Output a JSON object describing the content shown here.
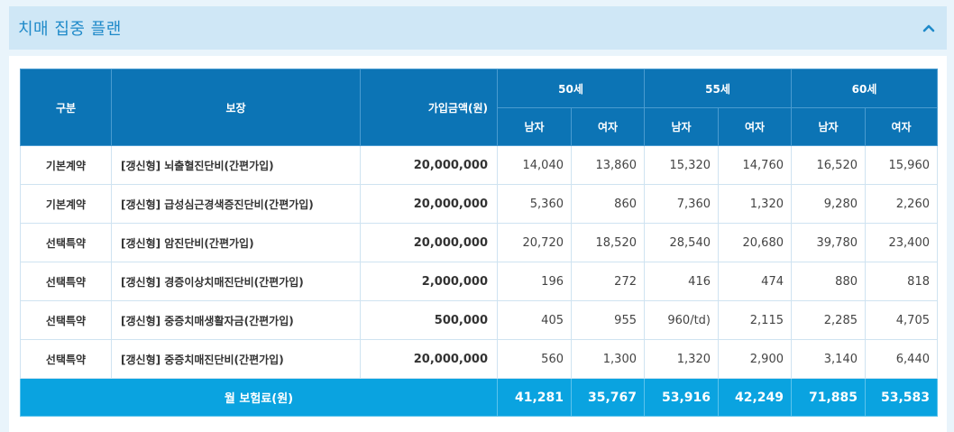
{
  "panel": {
    "title": "치매 집중 플랜",
    "collapse_icon": "chevron-up-icon",
    "accent_color": "#1f8ac9"
  },
  "table": {
    "headers": {
      "category": "구분",
      "coverage": "보장",
      "amount": "가입금액(원)",
      "ages": [
        "50세",
        "55세",
        "60세"
      ],
      "male": "남자",
      "female": "여자"
    },
    "rows": [
      {
        "category": "기본계약",
        "coverage": "[갱신형] 뇌출혈진단비(간편가입)",
        "amount": "20,000,000",
        "values": [
          "14,040",
          "13,860",
          "15,320",
          "14,760",
          "16,520",
          "15,960"
        ]
      },
      {
        "category": "기본계약",
        "coverage": "[갱신형] 급성심근경색증진단비(간편가입)",
        "amount": "20,000,000",
        "values": [
          "5,360",
          "860",
          "7,360",
          "1,320",
          "9,280",
          "2,260"
        ]
      },
      {
        "category": "선택특약",
        "coverage": "[갱신형] 암진단비(간편가입)",
        "amount": "20,000,000",
        "values": [
          "20,720",
          "18,520",
          "28,540",
          "20,680",
          "39,780",
          "23,400"
        ]
      },
      {
        "category": "선택특약",
        "coverage": "[갱신형] 경증이상치매진단비(간편가입)",
        "amount": "2,000,000",
        "values": [
          "196",
          "272",
          "416",
          "474",
          "880",
          "818"
        ]
      },
      {
        "category": "선택특약",
        "coverage": "[갱신형] 중증치매생활자금(간편가입)",
        "amount": "500,000",
        "values": [
          "405",
          "955",
          "960/td)",
          "2,115",
          "2,285",
          "4,705"
        ]
      },
      {
        "category": "선택특약",
        "coverage": "[갱신형] 중증치매진단비(간편가입)",
        "amount": "20,000,000",
        "values": [
          "560",
          "1,300",
          "1,320",
          "2,900",
          "3,140",
          "6,440"
        ]
      }
    ],
    "footer": {
      "label": "월 보험료(원)",
      "values": [
        "41,281",
        "35,767",
        "53,916",
        "42,249",
        "71,885",
        "53,583"
      ]
    },
    "colors": {
      "header_bg": "#0c74b5",
      "footer_bg": "#0aa3e0"
    }
  }
}
